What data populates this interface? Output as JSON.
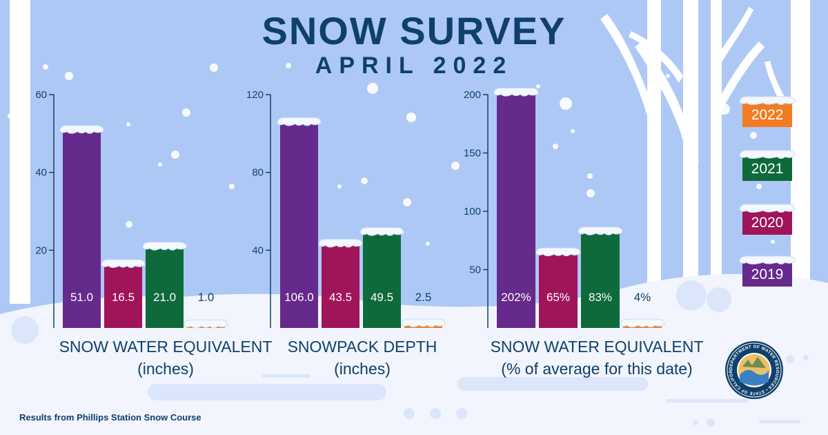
{
  "header": {
    "title": "SNOW SURVEY",
    "subtitle": "APRIL 2022"
  },
  "legend": [
    {
      "label": "2022",
      "color": "#f37c22"
    },
    {
      "label": "2021",
      "color": "#0e6a3a"
    },
    {
      "label": "2020",
      "color": "#a0145a"
    },
    {
      "label": "2019",
      "color": "#66298c"
    }
  ],
  "colors": {
    "2019": "#66298c",
    "2020": "#a0145a",
    "2021": "#0e6a3a",
    "2022": "#f37c22",
    "sky": "#aec8f6",
    "snow": "#f2f5fd",
    "navy": "#0f3f6b",
    "trees": "#ffffff"
  },
  "chart_data": [
    {
      "type": "bar",
      "categories": [
        "2019",
        "2020",
        "2021",
        "2022"
      ],
      "values": [
        51.0,
        16.5,
        21.0,
        1.0
      ],
      "value_labels": [
        "51.0",
        "16.5",
        "21.0",
        "1.0"
      ],
      "ylim": [
        0,
        60
      ],
      "yticks": [
        20,
        40,
        60
      ],
      "xlabel": "SNOW WATER EQUIVALENT",
      "xlabel_line2": "(inches)"
    },
    {
      "type": "bar",
      "categories": [
        "2019",
        "2020",
        "2021",
        "2022"
      ],
      "values": [
        106.0,
        43.5,
        49.5,
        2.5
      ],
      "value_labels": [
        "106.0",
        "43.5",
        "49.5",
        "2.5"
      ],
      "ylim": [
        0,
        120
      ],
      "yticks": [
        40,
        80,
        120
      ],
      "xlabel": "SNOWPACK DEPTH",
      "xlabel_line2": "(inches)"
    },
    {
      "type": "bar",
      "categories": [
        "2019",
        "2020",
        "2021",
        "2022"
      ],
      "values": [
        202,
        65,
        83,
        4
      ],
      "value_labels": [
        "202%",
        "65%",
        "83%",
        "4%"
      ],
      "ylim": [
        0,
        200
      ],
      "yticks": [
        50,
        100,
        150,
        200
      ],
      "xlabel": "SNOW WATER EQUIVALENT",
      "xlabel_line2": "(% of average for this date)"
    }
  ],
  "footnote": "Results from Phillips Station Snow Course",
  "seal": {
    "text": "DEPARTMENT OF WATER RESOURCES • STATE OF CALIFORNIA •"
  }
}
